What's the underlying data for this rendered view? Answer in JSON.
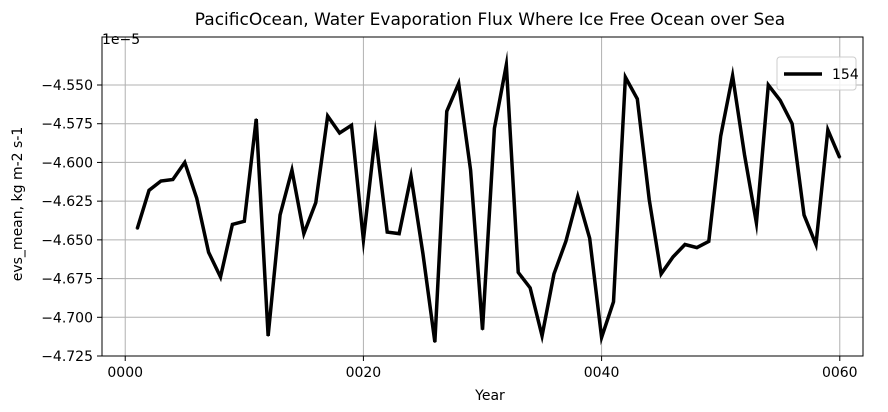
{
  "chart_data": {
    "type": "line",
    "title": "PacificOcean, Water Evaporation Flux Where Ice Free Ocean over Sea",
    "xlabel": "Year",
    "ylabel": "evs_mean, kg m-2 s-1",
    "y_offset_label": "1e−5",
    "xlim": [
      -1.95,
      61.95
    ],
    "ylim": [
      -4.725,
      -4.519
    ],
    "x_ticks": [
      0,
      20,
      40,
      60
    ],
    "x_tick_labels": [
      "0000",
      "0020",
      "0040",
      "0060"
    ],
    "y_ticks": [
      -4.725,
      -4.7,
      -4.675,
      -4.65,
      -4.625,
      -4.6,
      -4.575,
      -4.55
    ],
    "y_tick_labels": [
      "−4.725",
      "−4.700",
      "−4.675",
      "−4.650",
      "−4.625",
      "−4.600",
      "−4.575",
      "−4.550"
    ],
    "grid": true,
    "legend_position": "top-right",
    "series": [
      {
        "name": "154",
        "color": "#000000",
        "x": [
          1,
          2,
          3,
          4,
          5,
          6,
          7,
          8,
          9,
          10,
          11,
          12,
          13,
          14,
          15,
          16,
          17,
          18,
          19,
          20,
          21,
          22,
          23,
          24,
          25,
          26,
          27,
          28,
          29,
          30,
          31,
          32,
          33,
          34,
          35,
          36,
          37,
          38,
          39,
          40,
          41,
          42,
          43,
          44,
          45,
          46,
          47,
          48,
          49,
          50,
          51,
          52,
          53,
          54,
          55,
          56,
          57,
          58,
          59,
          60
        ],
        "values": [
          -4.643,
          -4.618,
          -4.612,
          -4.611,
          -4.6,
          -4.623,
          -4.658,
          -4.674,
          -4.64,
          -4.638,
          -4.572,
          -4.712,
          -4.634,
          -4.605,
          -4.646,
          -4.626,
          -4.57,
          -4.581,
          -4.576,
          -4.65,
          -4.582,
          -4.645,
          -4.646,
          -4.609,
          -4.659,
          -4.716,
          -4.567,
          -4.549,
          -4.605,
          -4.708,
          -4.578,
          -4.537,
          -4.671,
          -4.681,
          -4.712,
          -4.672,
          -4.651,
          -4.622,
          -4.649,
          -4.713,
          -4.69,
          -4.545,
          -4.559,
          -4.624,
          -4.672,
          -4.661,
          -4.653,
          -4.655,
          -4.651,
          -4.583,
          -4.544,
          -4.595,
          -4.639,
          -4.55,
          -4.56,
          -4.575,
          -4.634,
          -4.653,
          -4.579,
          -4.597
        ]
      }
    ]
  }
}
